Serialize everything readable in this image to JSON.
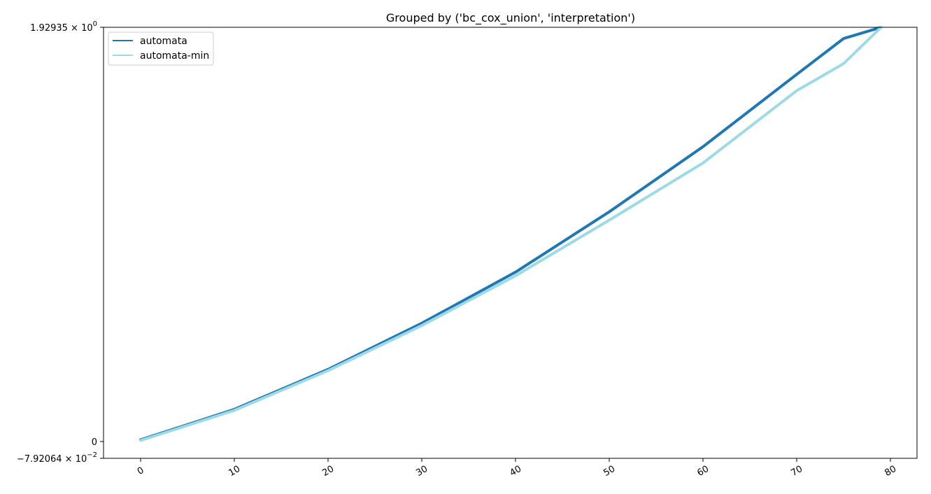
{
  "chart_data": {
    "type": "line",
    "title": "Grouped by ('bc_cox_union', 'interpretation')",
    "xlabel": "",
    "ylabel": "",
    "xlim": [
      -4,
      83
    ],
    "ylim": [
      -0.0792064,
      1.92935
    ],
    "y_scale": "symlog",
    "x_ticks": [
      0,
      10,
      20,
      30,
      40,
      50,
      60,
      70,
      80
    ],
    "x_tick_labels": [
      "0",
      "10",
      "20",
      "30",
      "40",
      "50",
      "60",
      "70",
      "80"
    ],
    "y_ticks": [
      {
        "value": 1.92935,
        "label_main": "1.92935 × 10",
        "label_exp": "0"
      },
      {
        "value": 0,
        "label_main": "0",
        "label_exp": ""
      },
      {
        "value": -0.0792064,
        "label_main": "−7.92064 × 10",
        "label_exp": "−2"
      }
    ],
    "grid": false,
    "legend_position": "top-left",
    "series": [
      {
        "name": "automata",
        "color": "#1f77b4",
        "x": [
          0,
          10,
          20,
          30,
          40,
          50,
          60,
          70,
          75,
          79
        ],
        "y": [
          0.008,
          0.15,
          0.336,
          0.551,
          0.789,
          1.07,
          1.373,
          1.71,
          1.877,
          1.929
        ]
      },
      {
        "name": "automata-min",
        "color": "#9edae5",
        "x": [
          0,
          10,
          20,
          30,
          40,
          50,
          60,
          70,
          75,
          79
        ],
        "y": [
          0.005,
          0.145,
          0.33,
          0.54,
          0.772,
          1.031,
          1.297,
          1.634,
          1.76,
          1.929
        ]
      }
    ]
  }
}
